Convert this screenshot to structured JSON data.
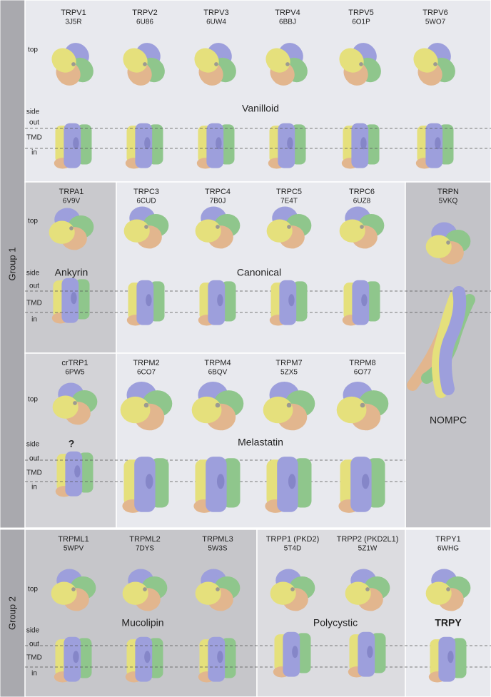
{
  "groups": [
    "Group 1",
    "Group 2"
  ],
  "panels": [
    {
      "family": "Vanilloid",
      "labels": {
        "top": "top",
        "side": "side",
        "out": "out",
        "tmd": "TMD",
        "in": "in"
      },
      "proteins": [
        {
          "name": "TRPV1",
          "pdb": "3J5R"
        },
        {
          "name": "TRPV2",
          "pdb": "6U86"
        },
        {
          "name": "TRPV3",
          "pdb": "6UW4"
        },
        {
          "name": "TRPV4",
          "pdb": "6BBJ"
        },
        {
          "name": "TRPV5",
          "pdb": "6O1P"
        },
        {
          "name": "TRPV6",
          "pdb": "5WO7"
        }
      ]
    },
    {
      "family": "Ankyrin",
      "labels": {
        "top": "top",
        "side": "side",
        "out": "out",
        "tmd": "TMD",
        "in": "in"
      },
      "proteins": [
        {
          "name": "TRPA1",
          "pdb": "6V9V"
        }
      ]
    },
    {
      "family": "Canonical",
      "proteins": [
        {
          "name": "TRPC3",
          "pdb": "6CUD"
        },
        {
          "name": "TRPC4",
          "pdb": "7B0J"
        },
        {
          "name": "TRPC5",
          "pdb": "7E4T"
        },
        {
          "name": "TRPC6",
          "pdb": "6UZ8"
        }
      ]
    },
    {
      "family": "NOMPC",
      "proteins": [
        {
          "name": "TRPN",
          "pdb": "5VKQ"
        }
      ]
    },
    {
      "family": "?",
      "labels": {
        "top": "top",
        "side": "side",
        "out": "out",
        "tmd": "TMD",
        "in": "in"
      },
      "proteins": [
        {
          "name": "crTRP1",
          "pdb": "6PW5"
        }
      ]
    },
    {
      "family": "Melastatin",
      "proteins": [
        {
          "name": "TRPM2",
          "pdb": "6CO7"
        },
        {
          "name": "TRPM4",
          "pdb": "6BQV"
        },
        {
          "name": "TRPM7",
          "pdb": "5ZX5"
        },
        {
          "name": "TRPM8",
          "pdb": "6O77"
        }
      ]
    },
    {
      "family": "Mucolipin",
      "labels": {
        "top": "top",
        "side": "side",
        "out": "out",
        "tmd": "TMD",
        "in": "in"
      },
      "proteins": [
        {
          "name": "TRPML1",
          "pdb": "5WPV"
        },
        {
          "name": "TRPML2",
          "pdb": "7DYS"
        },
        {
          "name": "TRPML3",
          "pdb": "5W3S"
        }
      ]
    },
    {
      "family": "Polycystic",
      "proteins": [
        {
          "name": "TRPP1 (PKD2)",
          "pdb": "5T4D"
        },
        {
          "name": "TRPP2 (PKD2L1)",
          "pdb": "5Z1W"
        }
      ]
    },
    {
      "family": "TRPY",
      "proteins": [
        {
          "name": "TRPY1",
          "pdb": "6WHG"
        }
      ]
    }
  ]
}
